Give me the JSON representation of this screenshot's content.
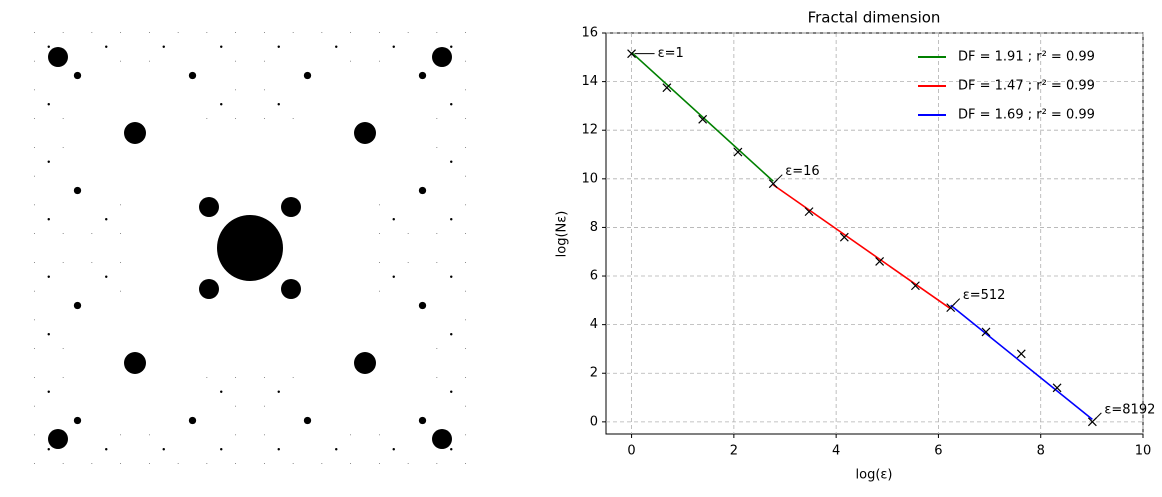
{
  "chart_data": {
    "type": "scatter",
    "title": "Fractal dimension",
    "xlabel": "log(ε)",
    "ylabel": "log(Nε)",
    "xlim": [
      -0.5,
      10
    ],
    "ylim": [
      -0.5,
      16
    ],
    "xticks": [
      0,
      2,
      4,
      6,
      8,
      10
    ],
    "yticks": [
      0,
      2,
      4,
      6,
      8,
      10,
      12,
      14,
      16
    ],
    "grid": true,
    "legend": "upper right",
    "series": [
      {
        "type": "scatter",
        "color": "#000000",
        "x": [
          0,
          0.69,
          1.39,
          2.08,
          2.77,
          3.47,
          4.16,
          4.85,
          5.55,
          6.24,
          6.93,
          7.62,
          8.32,
          9.01
        ],
        "values": [
          15.15,
          13.75,
          12.45,
          11.1,
          9.8,
          8.65,
          7.6,
          6.6,
          5.6,
          4.7,
          3.7,
          2.8,
          1.4,
          0.0
        ]
      },
      {
        "type": "line",
        "name": "DF = 1.91 ; r² = 0.99",
        "color": "#008000",
        "x": [
          0,
          2.77
        ],
        "values": [
          15.2,
          9.9
        ]
      },
      {
        "type": "line",
        "name": "DF = 1.47 ; r² = 0.99",
        "color": "#ff0000",
        "x": [
          2.77,
          6.24
        ],
        "values": [
          9.75,
          4.65
        ]
      },
      {
        "type": "line",
        "name": "DF = 1.69 ; r² = 0.99",
        "color": "#0000ff",
        "x": [
          6.24,
          9.01
        ],
        "values": [
          4.8,
          0.1
        ]
      }
    ],
    "annotations": [
      "ε=1",
      "ε=16",
      "ε=512",
      "ε=8192"
    ]
  }
}
